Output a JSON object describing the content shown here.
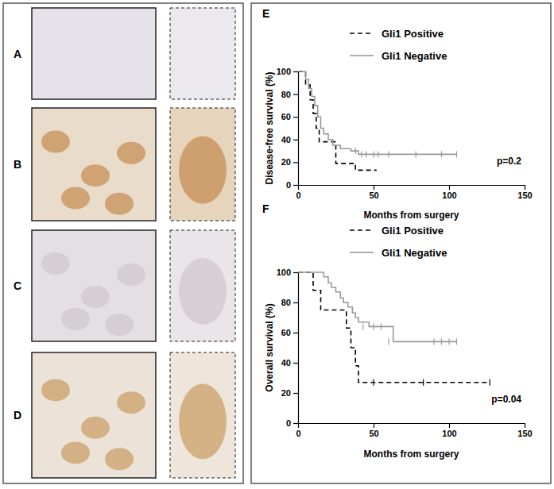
{
  "image_panels": [
    "A",
    "B",
    "C",
    "D"
  ],
  "chart_data": [
    {
      "type": "step",
      "title": "E",
      "x_label": "Months from surgery",
      "y_label": "Disease-free survival (%)",
      "xlim": [
        0,
        150
      ],
      "xticks": [
        0,
        50,
        100,
        150
      ],
      "ylim": [
        0,
        100
      ],
      "yticks": [
        0,
        20,
        40,
        60,
        80,
        100
      ],
      "legend": "upper right",
      "annotations": [
        "p=0.2"
      ],
      "series": [
        {
          "name": "Gli1 Positive",
          "color": "#000000",
          "line_style": "dashed",
          "x": [
            0,
            5,
            8,
            10,
            12,
            14,
            25,
            38,
            52
          ],
          "values": [
            100,
            88,
            75,
            63,
            50,
            38,
            19,
            13,
            13
          ],
          "censored_x": [],
          "censored_values": []
        },
        {
          "name": "Gli1 Negative",
          "color": "#999999",
          "line_style": "solid",
          "x": [
            0,
            5,
            7,
            9,
            11,
            13,
            15,
            17,
            20,
            23,
            28,
            35,
            40,
            105
          ],
          "values": [
            100,
            93,
            85,
            78,
            70,
            60,
            50,
            45,
            40,
            35,
            32,
            30,
            27,
            27
          ],
          "censored_x": [
            38,
            42,
            45,
            50,
            53,
            60,
            78,
            95,
            105
          ],
          "censored_values": [
            30,
            27,
            27,
            27,
            27,
            27,
            27,
            27,
            27
          ]
        }
      ]
    },
    {
      "type": "step",
      "title": "F",
      "x_label": "Months from surgery",
      "y_label": "Overall survival (%)",
      "xlim": [
        0,
        150
      ],
      "xticks": [
        0,
        50,
        100,
        150
      ],
      "ylim": [
        0,
        100
      ],
      "yticks": [
        0,
        20,
        40,
        60,
        80,
        100
      ],
      "legend": "upper right",
      "annotations": [
        "p=0.04"
      ],
      "series": [
        {
          "name": "Gli1 Positive",
          "color": "#000000",
          "line_style": "dashed",
          "x": [
            0,
            10,
            15,
            32,
            35,
            38,
            40,
            127
          ],
          "values": [
            100,
            88,
            75,
            63,
            50,
            38,
            27,
            27
          ],
          "censored_x": [
            50,
            83,
            127
          ],
          "censored_values": [
            27,
            27,
            27
          ]
        },
        {
          "name": "Gli1 Negative",
          "color": "#999999",
          "line_style": "solid",
          "x": [
            0,
            17,
            20,
            22,
            25,
            28,
            30,
            33,
            36,
            38,
            40,
            47,
            63,
            105
          ],
          "values": [
            100,
            97,
            93,
            90,
            87,
            83,
            80,
            77,
            73,
            70,
            67,
            64,
            54,
            54
          ],
          "censored_x": [
            43,
            50,
            55,
            60,
            90,
            95,
            100,
            105
          ],
          "censored_values": [
            64,
            64,
            64,
            54,
            54,
            54,
            54,
            54
          ]
        }
      ]
    }
  ]
}
